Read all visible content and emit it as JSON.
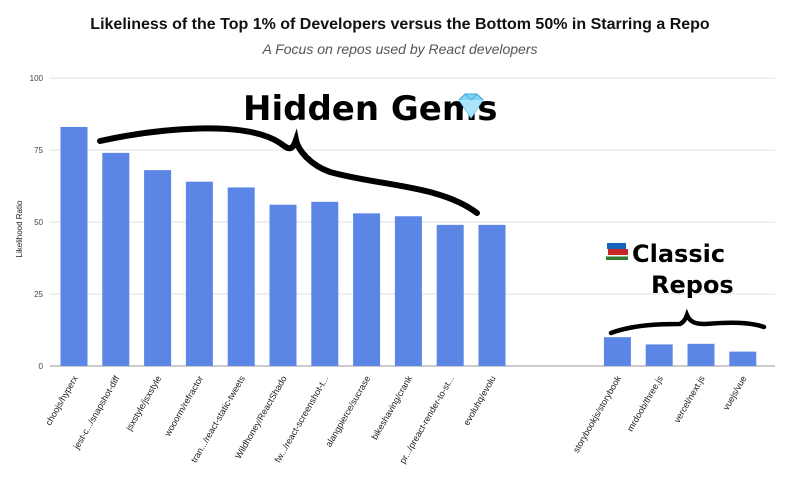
{
  "chart_data": {
    "type": "bar",
    "title": "Likeliness of the Top 1% of Developers versus the Bottom 50% in Starring a Repo",
    "subtitle": "A Focus on repos used by React developers",
    "ylabel": "Likelihood Ratio",
    "xlabel": "",
    "ylim": [
      0,
      100
    ],
    "yticks": [
      "0",
      "25",
      "50",
      "75",
      "100"
    ],
    "grid": true,
    "bar_color": "#5b86e5",
    "categories": [
      "choojs/hyperx",
      "jest-c.../snapshot-diff",
      "jsxstyle/jsxstyle",
      "wooorm/refractor",
      "tran.../react-static-tweets",
      "Wildhoney/ReactShado",
      "fw.../react-screenshot-t...",
      "alangpierce/sucrase",
      "bikeshaving/crank",
      "pr.../preact-render-to-st...",
      "evoluhq/evolu",
      "",
      "",
      "storybookjs/storybook",
      "mrdoob/three.js",
      "vercel/next.js",
      "vuejs/vue"
    ],
    "values": [
      83,
      74,
      68,
      64,
      62,
      56,
      57,
      53,
      52,
      49,
      49,
      null,
      null,
      10,
      7.5,
      7.7,
      5
    ],
    "annotations": [
      {
        "text": "Hidden Gems",
        "icon": "gem-icon"
      },
      {
        "text": "Classic",
        "text2": "Repos",
        "icon": "books-icon"
      }
    ]
  }
}
